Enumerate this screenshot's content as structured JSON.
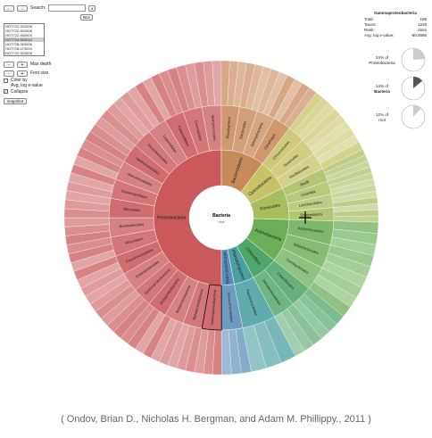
{
  "controls": {
    "search_label": "Search:",
    "search_value": "",
    "hits_label": "Ncc",
    "datasets": [
      "HGT722-922006",
      "HGT722-922008",
      "HGT722-942004",
      "HGT724-963014",
      "HGT728-063006",
      "HGT728-473094",
      "HGT722-923006"
    ],
    "selected_dataset": 3,
    "max_depth_label": "Max depth",
    "font_size_label": "Font size",
    "color_by_label": "Color by",
    "avg_log_evalue_label": "Avg. log e-value",
    "collapse_label": "Collapse",
    "snapshot_label": "snapshot"
  },
  "details": {
    "name": "Gammaproteobacteria",
    "rows": [
      {
        "k": "Total:",
        "v": "199"
      },
      {
        "k": "Taxon:",
        "v": "1228"
      },
      {
        "k": "Rank:",
        "v": "class"
      },
      {
        "k": "Avg. log e-value:",
        "v": "-60.0086"
      }
    ]
  },
  "pies": [
    {
      "label": "24% of",
      "label2": "Proteobacteria",
      "fraction": 0.24,
      "color": "#cccccc"
    },
    {
      "label": "14% of",
      "label2": "Bacteria",
      "fraction": 0.14,
      "color": "#555555"
    },
    {
      "label": "12% of",
      "label2": "root",
      "fraction": 0.12,
      "color": "#cccccc"
    }
  ],
  "center": {
    "title": "Bacteria",
    "subtitle": "root"
  },
  "wedges": [
    {
      "label": "Proteobacteria",
      "color": "#c9595c",
      "sub": [
        "Gammaproteobacteria",
        "Alphaproteobacteria",
        "Betaproteobacteria",
        "Deltaproteobacteria",
        "Epsilonproteobacteria",
        "Enterobacteriales",
        "Pseudomonadales",
        "Rhizobiales",
        "Burkholderiales",
        "Vibrionales",
        "Oceanospirillales",
        "Alteromonadales",
        "Xanthomonadales",
        "Rhodobacterales",
        "Legionellales",
        "Pasteurellales",
        "Chromatiales",
        "Methylococcales"
      ]
    },
    {
      "label": "Bacteroidetes",
      "color": "#c98a5a",
      "sub": [
        "Flavobacteria",
        "Bacteroidia",
        "Sphingobacteria",
        "Cytophagia"
      ]
    },
    {
      "label": "Cyanobacteria",
      "color": "#c7c367",
      "sub": [
        "Chroococcales",
        "Nostocales",
        "Oscillatoriales"
      ]
    },
    {
      "label": "Firmicutes",
      "color": "#a7bd5e",
      "sub": [
        "Bacilli",
        "Clostridia",
        "Lactobacillales",
        "Erysipelotrichi"
      ]
    },
    {
      "label": "Actinobacteria",
      "color": "#6cae57",
      "sub": [
        "Actinomycetales",
        "Bifidobacteriales",
        "Coriobacteriales"
      ]
    },
    {
      "label": "Chloroflexi",
      "color": "#4fa66a",
      "sub": [
        "Chloroflexales",
        "Dehalococcoidetes"
      ]
    },
    {
      "label": "Planctomycetes",
      "color": "#4a9fa0",
      "sub": [
        "Planctomycetales"
      ]
    },
    {
      "label": "Verrucomicrobia",
      "color": "#5a8fb8",
      "sub": [
        "Verrucomicrobiales"
      ]
    }
  ],
  "citation": "( Ondov, Brian D., Nicholas H. Bergman, and Adam M. Phillippy., 2011 )"
}
